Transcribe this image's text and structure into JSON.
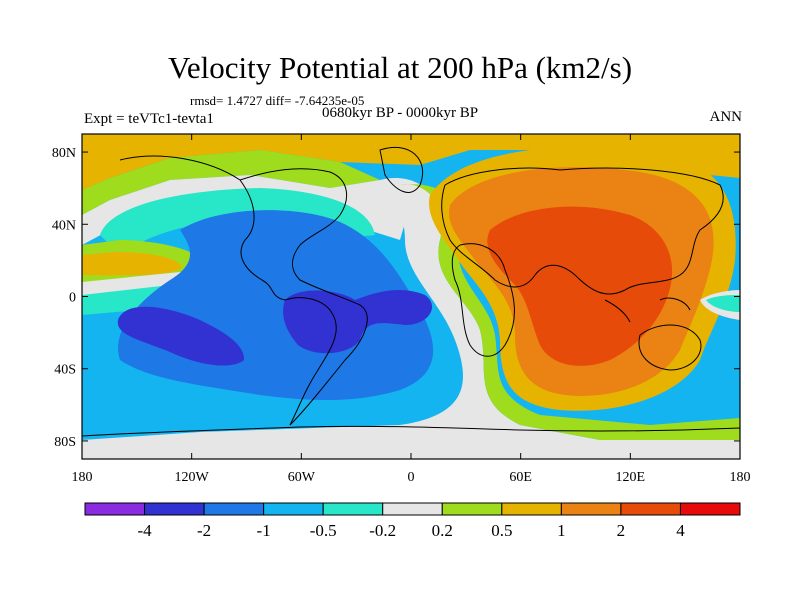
{
  "header": {
    "title": "Velocity Potential at 200 hPa (km2/s)",
    "stats": "rmsd= 1.4727 diff= -7.64235e-05",
    "experiment": "Expt = teVTc1-tevta1",
    "period": "0680kyr BP - 0000kyr BP",
    "season": "ANN"
  },
  "axes": {
    "x_ticks": [
      {
        "lon": -180,
        "label": "180"
      },
      {
        "lon": -120,
        "label": "120W"
      },
      {
        "lon": -60,
        "label": "60W"
      },
      {
        "lon": 0,
        "label": "0"
      },
      {
        "lon": 60,
        "label": "60E"
      },
      {
        "lon": 120,
        "label": "120E"
      },
      {
        "lon": 180,
        "label": "180"
      }
    ],
    "y_ticks": [
      {
        "lat": 80,
        "label": "80N"
      },
      {
        "lat": 40,
        "label": "40N"
      },
      {
        "lat": 0,
        "label": "0"
      },
      {
        "lat": -40,
        "label": "40S"
      },
      {
        "lat": -80,
        "label": "80S"
      }
    ],
    "lon_range": [
      -180,
      180
    ],
    "lat_range": [
      -90,
      90
    ]
  },
  "colorbar": {
    "colors": [
      "#8a2be2",
      "#3232d2",
      "#1e78e6",
      "#14b4f0",
      "#28e6c8",
      "#e6e6e6",
      "#a0dc1e",
      "#e6b400",
      "#eb8214",
      "#e64b0a",
      "#e60a0a"
    ],
    "labels": [
      "-4",
      "-2",
      "-1",
      "-0.5",
      "-0.2",
      "0.2",
      "0.5",
      "1",
      "2",
      "4"
    ]
  },
  "field": {
    "background_color": "#14b4f0",
    "description_levels": [
      {
        "name": "teal",
        "color": "#28e6c8"
      },
      {
        "name": "blue",
        "color": "#1e78e6"
      },
      {
        "name": "deep-blue",
        "color": "#3232d2"
      },
      {
        "name": "white",
        "color": "#e6e6e6"
      },
      {
        "name": "green",
        "color": "#a0dc1e"
      },
      {
        "name": "yellow",
        "color": "#e6b400"
      },
      {
        "name": "orange",
        "color": "#eb8214"
      },
      {
        "name": "red-orange",
        "color": "#e64b0a"
      }
    ]
  }
}
